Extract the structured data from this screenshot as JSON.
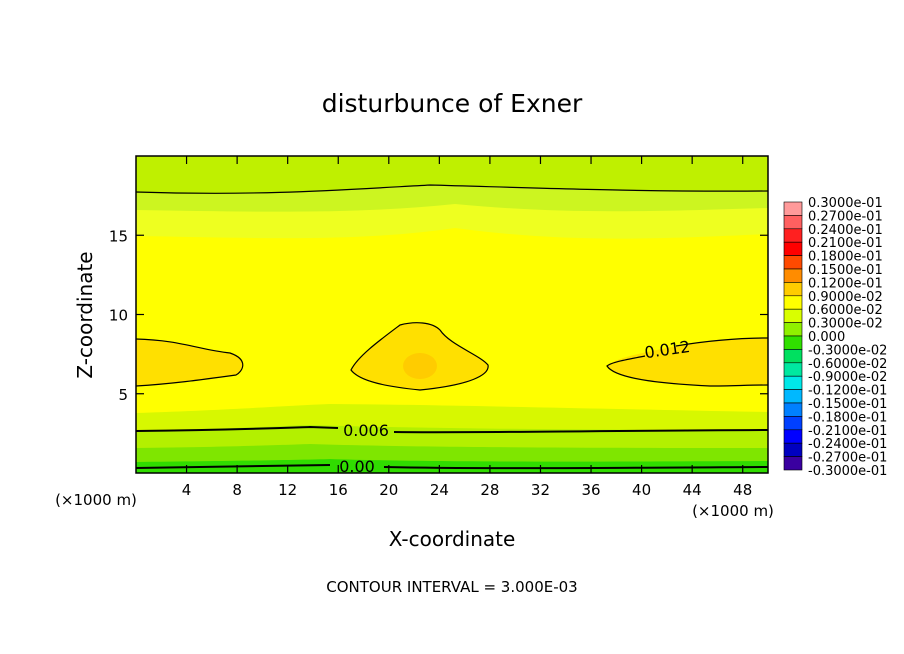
{
  "chart_data": {
    "type": "heatmap",
    "title": "disturbunce of Exner",
    "xlabel": "X-coordinate",
    "ylabel": "Z-coordinate",
    "x_unit": "(×1000 m)",
    "y_unit": "(×1000 m)",
    "xlim": [
      0,
      50
    ],
    "ylim": [
      0,
      20
    ],
    "x_ticks": [
      4,
      8,
      12,
      16,
      20,
      24,
      28,
      32,
      36,
      40,
      44,
      48
    ],
    "y_ticks": [
      5,
      10,
      15
    ],
    "footer": "CONTOUR INTERVAL = 3.000E-03",
    "contour_labels": [
      {
        "text": "0.012",
        "x": 42,
        "z": 7.7
      },
      {
        "text": "0.006",
        "x": 18,
        "z": 2.7
      },
      {
        "text": "0.00",
        "x": 17,
        "z": 0.4
      }
    ],
    "colorbar": {
      "levels": [
        "0.3000e-01",
        "0.2700e-01",
        "0.2400e-01",
        "0.2100e-01",
        "0.1800e-01",
        "0.1500e-01",
        "0.1200e-01",
        "0.9000e-02",
        "0.6000e-02",
        "0.3000e-02",
        "0.000",
        "-0.3000e-02",
        "-0.6000e-02",
        "-0.9000e-02",
        "-0.1200e-01",
        "-0.1500e-01",
        "-0.1800e-01",
        "-0.2100e-01",
        "-0.2400e-01",
        "-0.2700e-01",
        "-0.3000e-01"
      ],
      "colors": [
        "#ff9a9a",
        "#ff6060",
        "#ff2020",
        "#ff0000",
        "#ff4a00",
        "#ff8c00",
        "#ffcc00",
        "#ffff00",
        "#d9ff00",
        "#90f000",
        "#30e000",
        "#00e060",
        "#00e8a0",
        "#00e8e8",
        "#00b8ff",
        "#0080ff",
        "#0040ff",
        "#0000ff",
        "#0000c0",
        "#3a00a0"
      ]
    }
  }
}
